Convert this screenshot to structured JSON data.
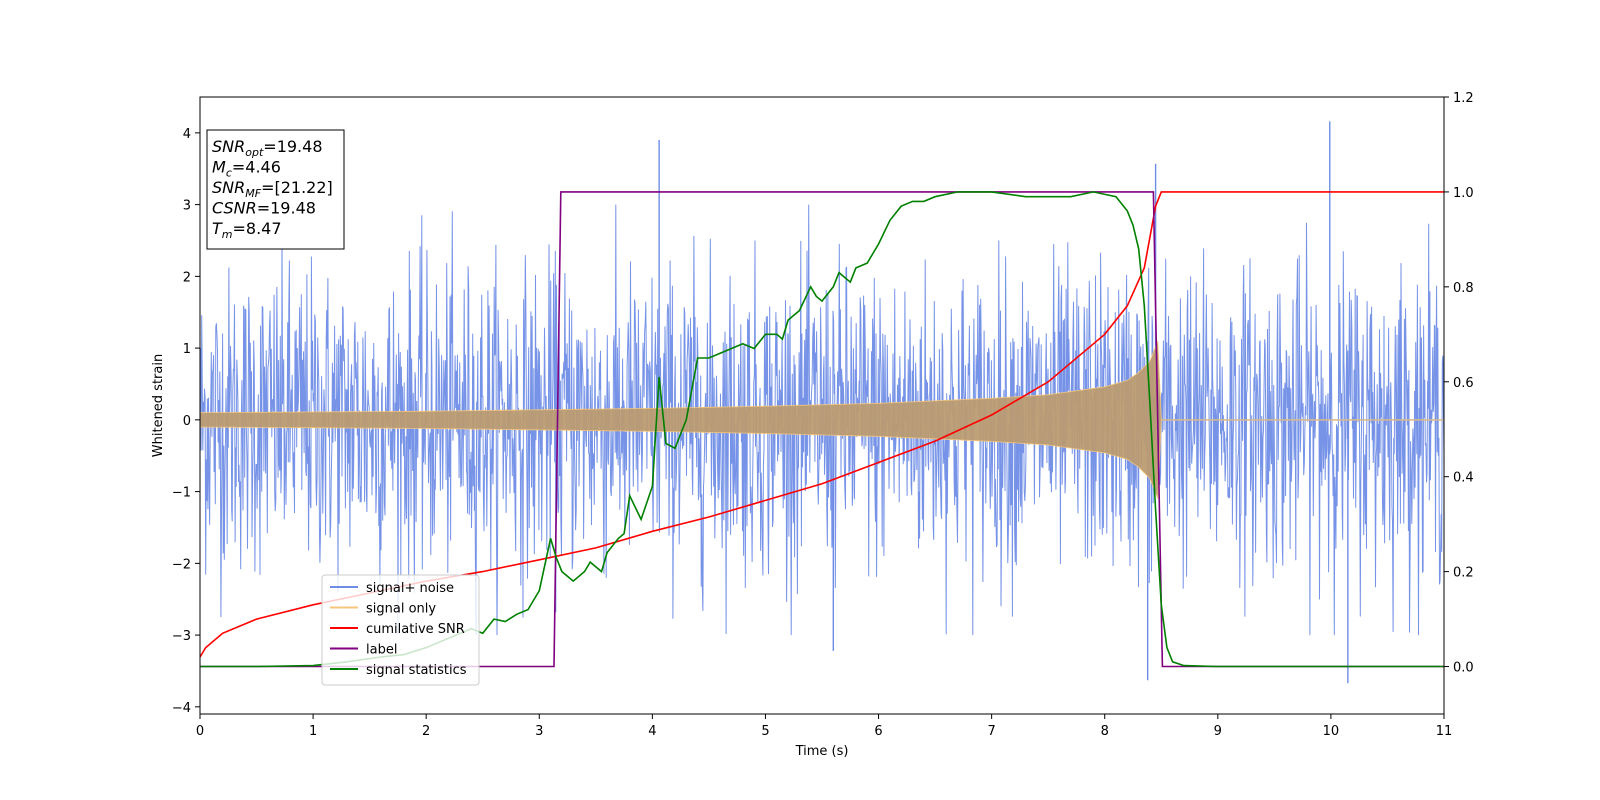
{
  "chart_data": {
    "type": "line",
    "xlabel": "Time (s)",
    "ylabel": "Whitened strain",
    "xlim": [
      0,
      11
    ],
    "ylim": [
      -4.1,
      4.5
    ],
    "y2lim": [
      -0.1,
      1.2
    ],
    "x_ticks": [
      "0",
      "1",
      "2",
      "3",
      "4",
      "5",
      "6",
      "7",
      "8",
      "9",
      "10",
      "11"
    ],
    "y_ticks": [
      "−4",
      "−3",
      "−2",
      "−1",
      "0",
      "1",
      "2",
      "3",
      "4"
    ],
    "y2_ticks": [
      "0.0",
      "0.2",
      "0.4",
      "0.6",
      "0.8",
      "1.0",
      "1.2"
    ],
    "grid": false,
    "legend_position": "lower-left",
    "info_box": {
      "position": "top-left",
      "lines": [
        {
          "main": "SNR",
          "sub": "opt",
          "rest": "=19.48"
        },
        {
          "main": "M",
          "sub": "c",
          "rest": "=4.46"
        },
        {
          "main": "SNR",
          "sub": "MF",
          "rest": "=[21.22]"
        },
        {
          "main": "CSNR",
          "sub": "",
          "rest": "=19.48"
        },
        {
          "main": "T",
          "sub": "m",
          "rest": "=8.47"
        }
      ]
    },
    "series": [
      {
        "name": "signal+ noise",
        "axis": "left",
        "color": "#6f8de6",
        "kind": "noise_band",
        "typical_range": [
          -2.2,
          2.2
        ],
        "notable_peaks": [
          [
            4.06,
            3.9
          ],
          [
            8.45,
            3.57
          ],
          [
            9.99,
            4.16
          ],
          [
            10.15,
            -3.67
          ],
          [
            8.38,
            -3.63
          ],
          [
            5.6,
            -3.22
          ]
        ]
      },
      {
        "name": "signal only",
        "axis": "left",
        "color": "#f5c57a",
        "kind": "chirp_envelope",
        "envelope": [
          [
            0,
            0.1
          ],
          [
            1,
            0.11
          ],
          [
            2,
            0.12
          ],
          [
            3,
            0.14
          ],
          [
            4,
            0.16
          ],
          [
            5,
            0.19
          ],
          [
            6,
            0.23
          ],
          [
            7,
            0.3
          ],
          [
            7.5,
            0.35
          ],
          [
            8,
            0.46
          ],
          [
            8.2,
            0.55
          ],
          [
            8.3,
            0.66
          ],
          [
            8.4,
            0.82
          ],
          [
            8.47,
            1.1
          ],
          [
            8.5,
            0.0
          ],
          [
            11,
            0.0
          ]
        ]
      },
      {
        "name": "cumilative SNR",
        "axis": "right",
        "color": "#ff0000",
        "points": [
          [
            0.0,
            0.02
          ],
          [
            0.05,
            0.04
          ],
          [
            0.2,
            0.07
          ],
          [
            0.5,
            0.1
          ],
          [
            1,
            0.13
          ],
          [
            1.5,
            0.155
          ],
          [
            2,
            0.18
          ],
          [
            2.5,
            0.2
          ],
          [
            3,
            0.225
          ],
          [
            3.5,
            0.25
          ],
          [
            4,
            0.285
          ],
          [
            4.5,
            0.315
          ],
          [
            5,
            0.35
          ],
          [
            5.5,
            0.385
          ],
          [
            6,
            0.43
          ],
          [
            6.5,
            0.475
          ],
          [
            7,
            0.53
          ],
          [
            7.5,
            0.6
          ],
          [
            8,
            0.7
          ],
          [
            8.2,
            0.76
          ],
          [
            8.35,
            0.84
          ],
          [
            8.45,
            0.97
          ],
          [
            8.5,
            1.0
          ],
          [
            11,
            1.0
          ]
        ]
      },
      {
        "name": "label",
        "axis": "right",
        "color": "#800080",
        "points": [
          [
            0,
            0
          ],
          [
            3.13,
            0
          ],
          [
            3.19,
            1.0
          ],
          [
            8.43,
            1.0
          ],
          [
            8.51,
            0
          ],
          [
            11,
            0
          ]
        ]
      },
      {
        "name": "signal statistics",
        "axis": "right",
        "color": "#008000",
        "points": [
          [
            0,
            0.0
          ],
          [
            0.5,
            0.0
          ],
          [
            1.0,
            0.002
          ],
          [
            1.3,
            0.01
          ],
          [
            1.6,
            0.02
          ],
          [
            1.8,
            0.025
          ],
          [
            2.0,
            0.04
          ],
          [
            2.2,
            0.06
          ],
          [
            2.4,
            0.08
          ],
          [
            2.5,
            0.07
          ],
          [
            2.6,
            0.1
          ],
          [
            2.7,
            0.095
          ],
          [
            2.8,
            0.11
          ],
          [
            2.9,
            0.12
          ],
          [
            3.0,
            0.16
          ],
          [
            3.1,
            0.27
          ],
          [
            3.15,
            0.23
          ],
          [
            3.2,
            0.2
          ],
          [
            3.3,
            0.18
          ],
          [
            3.4,
            0.2
          ],
          [
            3.45,
            0.22
          ],
          [
            3.55,
            0.2
          ],
          [
            3.6,
            0.24
          ],
          [
            3.7,
            0.27
          ],
          [
            3.75,
            0.28
          ],
          [
            3.8,
            0.36
          ],
          [
            3.9,
            0.31
          ],
          [
            4.0,
            0.38
          ],
          [
            4.06,
            0.61
          ],
          [
            4.12,
            0.47
          ],
          [
            4.2,
            0.46
          ],
          [
            4.3,
            0.52
          ],
          [
            4.4,
            0.65
          ],
          [
            4.5,
            0.65
          ],
          [
            4.6,
            0.66
          ],
          [
            4.7,
            0.67
          ],
          [
            4.8,
            0.68
          ],
          [
            4.9,
            0.67
          ],
          [
            5.0,
            0.7
          ],
          [
            5.1,
            0.7
          ],
          [
            5.15,
            0.69
          ],
          [
            5.2,
            0.73
          ],
          [
            5.3,
            0.75
          ],
          [
            5.4,
            0.8
          ],
          [
            5.45,
            0.78
          ],
          [
            5.5,
            0.77
          ],
          [
            5.6,
            0.8
          ],
          [
            5.65,
            0.83
          ],
          [
            5.7,
            0.82
          ],
          [
            5.75,
            0.81
          ],
          [
            5.8,
            0.84
          ],
          [
            5.9,
            0.85
          ],
          [
            6.0,
            0.89
          ],
          [
            6.1,
            0.94
          ],
          [
            6.2,
            0.97
          ],
          [
            6.3,
            0.98
          ],
          [
            6.4,
            0.98
          ],
          [
            6.5,
            0.99
          ],
          [
            6.7,
            1.0
          ],
          [
            7.0,
            1.0
          ],
          [
            7.3,
            0.99
          ],
          [
            7.5,
            0.99
          ],
          [
            7.7,
            0.99
          ],
          [
            7.9,
            1.0
          ],
          [
            8.1,
            0.99
          ],
          [
            8.2,
            0.96
          ],
          [
            8.25,
            0.93
          ],
          [
            8.3,
            0.88
          ],
          [
            8.35,
            0.76
          ],
          [
            8.4,
            0.55
          ],
          [
            8.45,
            0.33
          ],
          [
            8.5,
            0.13
          ],
          [
            8.55,
            0.04
          ],
          [
            8.6,
            0.01
          ],
          [
            8.7,
            0.002
          ],
          [
            9.0,
            0.0
          ],
          [
            11,
            0.0
          ]
        ]
      }
    ]
  }
}
